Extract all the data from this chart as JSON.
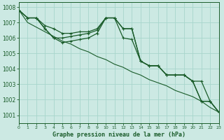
{
  "xlabel": "Graphe pression niveau de la mer (hPa)",
  "ylim": [
    1000.5,
    1008.3
  ],
  "xlim": [
    0,
    23
  ],
  "yticks": [
    1001,
    1002,
    1003,
    1004,
    1005,
    1006,
    1007,
    1008
  ],
  "xticks": [
    0,
    1,
    2,
    3,
    4,
    5,
    6,
    7,
    8,
    9,
    10,
    11,
    12,
    13,
    14,
    15,
    16,
    17,
    18,
    19,
    20,
    21,
    22,
    23
  ],
  "background_color": "#cce9e3",
  "grid_color": "#a8d5cc",
  "line_color": "#1a5c2a",
  "s0": [
    1007.8,
    1007.3,
    1007.3,
    1006.6,
    1006.0,
    1006.0,
    1006.1,
    1006.2,
    1006.3,
    1006.5,
    1007.3,
    1007.3,
    1006.0,
    1005.9,
    1004.5,
    1004.2,
    1004.2,
    1003.6,
    1003.6,
    1003.6,
    1003.2,
    1001.9,
    1001.9,
    1001.2
  ],
  "s1": [
    1007.8,
    1007.3,
    1007.3,
    1006.8,
    1006.6,
    1006.3,
    1006.3,
    1006.4,
    1006.4,
    1006.6,
    1007.3,
    1007.3,
    1006.6,
    1006.6,
    1004.5,
    1004.2,
    1004.2,
    1003.6,
    1003.6,
    1003.6,
    1003.2,
    1001.9,
    1001.9,
    1001.2
  ],
  "s2": [
    1007.8,
    1007.0,
    1006.7,
    1006.4,
    1006.1,
    1005.8,
    1005.6,
    1005.3,
    1005.1,
    1004.8,
    1004.6,
    1004.3,
    1004.1,
    1003.8,
    1003.6,
    1003.3,
    1003.1,
    1002.9,
    1002.6,
    1002.4,
    1002.2,
    1001.9,
    1001.5,
    1001.2
  ],
  "s3": [
    1007.8,
    1007.3,
    1007.3,
    1006.6,
    1006.0,
    1005.7,
    1005.8,
    1005.9,
    1006.0,
    1006.3,
    1007.3,
    1007.3,
    1006.6,
    1006.6,
    1004.5,
    1004.2,
    1004.2,
    1003.6,
    1003.6,
    1003.6,
    1003.2,
    1003.2,
    1001.9,
    1001.2
  ]
}
